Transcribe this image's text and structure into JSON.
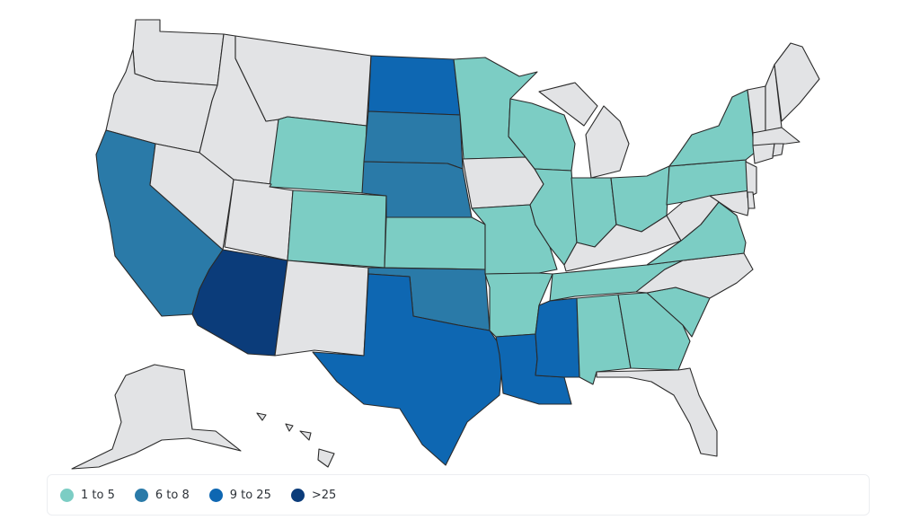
{
  "colors": {
    "none": "#e2e3e5",
    "1-5": "#7ccdc4",
    "6-8": "#2a7aa8",
    "9-25": "#0e67b2",
    "25+": "#0b3c7a"
  },
  "legend": [
    {
      "key": "1-5",
      "label": "1 to 5"
    },
    {
      "key": "6-8",
      "label": "6 to 8"
    },
    {
      "key": "9-25",
      "label": "9 to 25"
    },
    {
      "key": "25+",
      "label": ">25"
    }
  ],
  "states": {
    "WA": "none",
    "OR": "none",
    "CA": "6-8",
    "ID": "none",
    "NV": "none",
    "MT": "none",
    "WY": "1-5",
    "UT": "none",
    "AZ": "25+",
    "CO": "1-5",
    "NM": "none",
    "ND": "9-25",
    "SD": "6-8",
    "NE": "6-8",
    "KS": "1-5",
    "OK": "6-8",
    "TX": "9-25",
    "MN": "1-5",
    "IA": "none",
    "MO": "1-5",
    "AR": "1-5",
    "LA": "9-25",
    "WI": "1-5",
    "IL": "1-5",
    "MI": "none",
    "IN": "1-5",
    "OH": "1-5",
    "KY": "none",
    "TN": "1-5",
    "MS": "9-25",
    "AL": "1-5",
    "GA": "1-5",
    "FL": "none",
    "SC": "1-5",
    "NC": "none",
    "VA": "1-5",
    "WV": "none",
    "PA": "1-5",
    "NY": "1-5",
    "MD": "none",
    "NJ": "none",
    "ME": "none",
    "NH": "none",
    "VT": "none",
    "MA": "none",
    "CT": "none",
    "RI": "none",
    "DE": "none",
    "AK": "none",
    "HI": "none"
  }
}
